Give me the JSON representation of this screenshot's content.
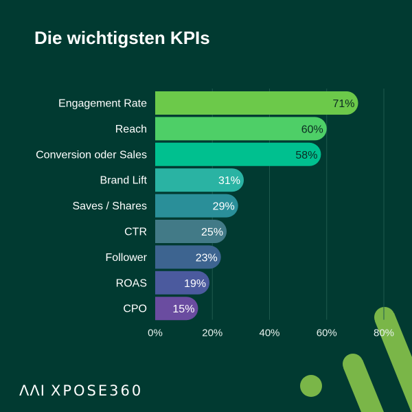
{
  "title": "Die wichtigsten KPIs",
  "logo": {
    "text": "XPOSE360",
    "mark": "ΛΛΙ"
  },
  "colors": {
    "background": "#013a31",
    "accent": "#7ab648",
    "grid": "#1f5a4e"
  },
  "chart_data": {
    "type": "bar",
    "orientation": "horizontal",
    "title": "Die wichtigsten KPIs",
    "xlabel": "",
    "ylabel": "",
    "categories": [
      "Engagement Rate",
      "Reach",
      "Conversion oder Sales",
      "Brand Lift",
      "Saves / Shares",
      "CTR",
      "Follower",
      "ROAS",
      "CPO"
    ],
    "values": [
      71,
      60,
      58,
      31,
      29,
      25,
      23,
      19,
      15
    ],
    "data_labels": [
      "71%",
      "60%",
      "58%",
      "31%",
      "29%",
      "25%",
      "23%",
      "19%",
      "15%"
    ],
    "bar_colors": [
      "#6cc94a",
      "#4ecf67",
      "#00c08f",
      "#2ab3a3",
      "#2a8f99",
      "#427a87",
      "#3d6490",
      "#4b5a9e",
      "#6a4ca0"
    ],
    "label_colors": [
      "#0b2a22",
      "#0b2a22",
      "#0b2a22",
      "#ffffff",
      "#ffffff",
      "#ffffff",
      "#ffffff",
      "#ffffff",
      "#ffffff"
    ],
    "xlim": [
      0,
      80
    ],
    "xticks": [
      0,
      20,
      40,
      60,
      80
    ],
    "xtick_labels": [
      "0%",
      "20%",
      "40%",
      "60%",
      "80%"
    ],
    "grid": true,
    "legend": "none"
  }
}
